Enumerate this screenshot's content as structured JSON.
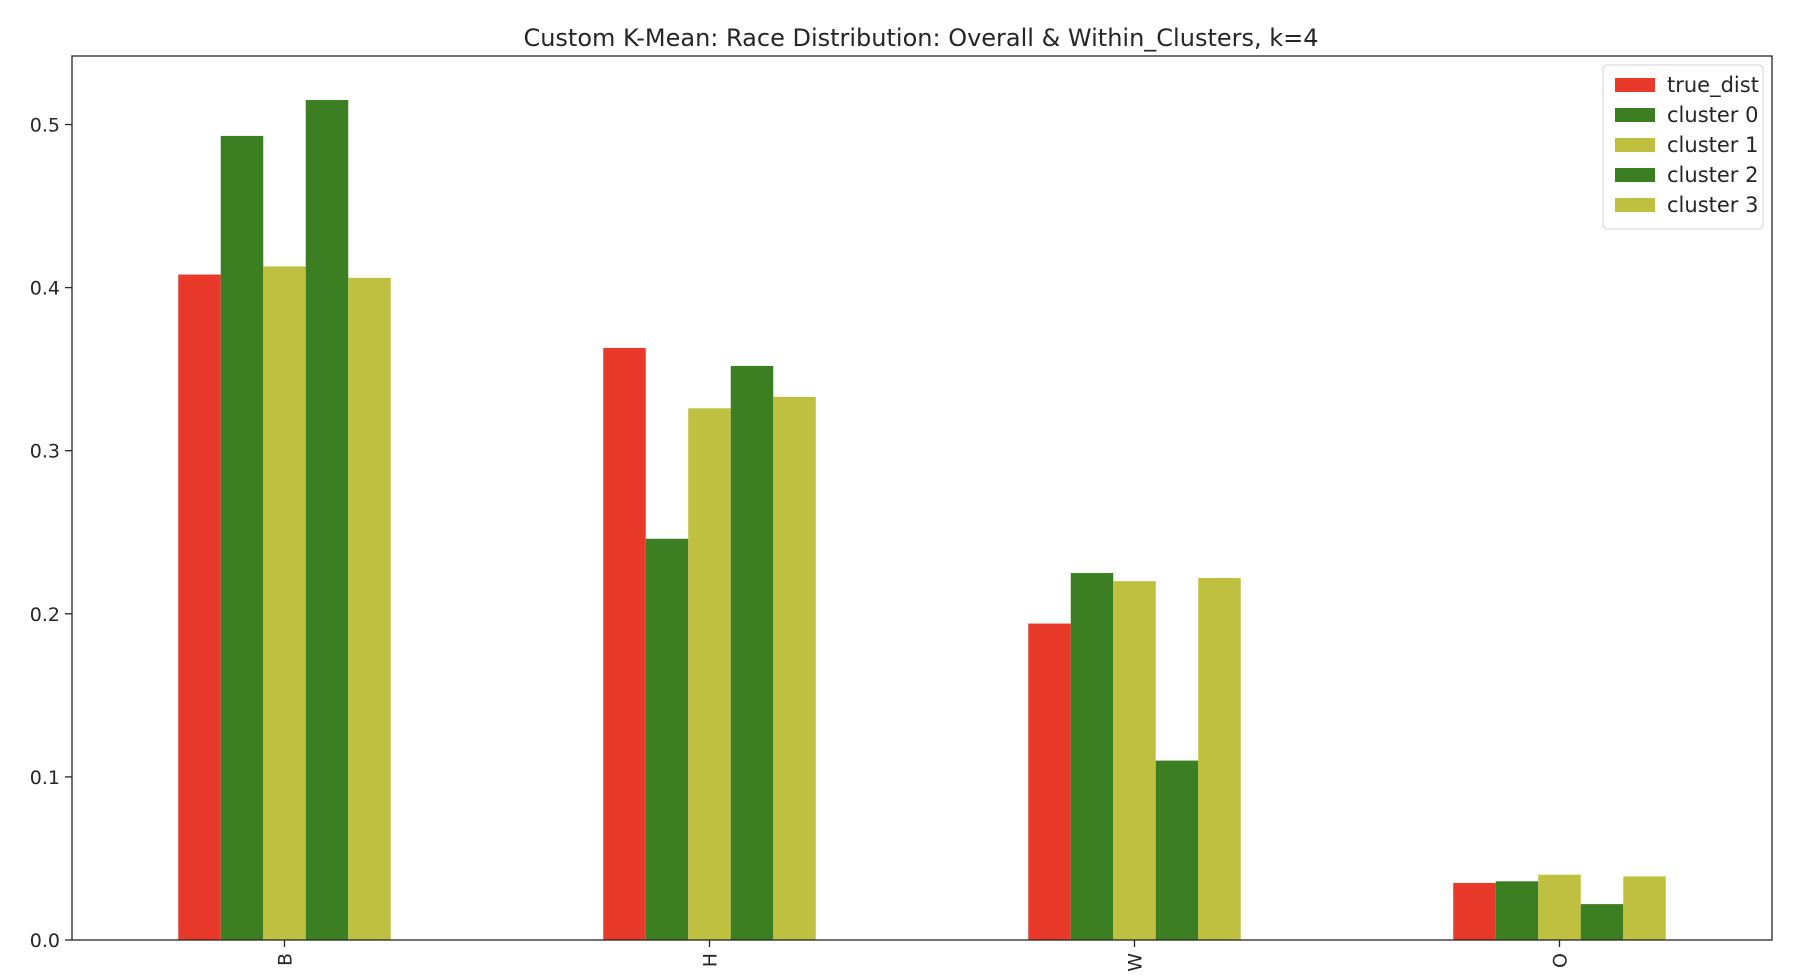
{
  "chart_data": {
    "type": "bar",
    "title": "Custom K-Mean: Race Distribution: Overall & Within_Clusters, k=4",
    "xlabel": "",
    "ylabel": "",
    "categories": [
      "B",
      "H",
      "W",
      "O"
    ],
    "series": [
      {
        "name": "true_dist",
        "color": "#e8392a",
        "values": [
          0.408,
          0.363,
          0.194,
          0.035
        ]
      },
      {
        "name": "cluster 0",
        "color": "#3b7f22",
        "values": [
          0.493,
          0.246,
          0.225,
          0.036
        ]
      },
      {
        "name": "cluster 1",
        "color": "#bfbf40",
        "values": [
          0.413,
          0.326,
          0.22,
          0.04
        ]
      },
      {
        "name": "cluster 2",
        "color": "#3b7f22",
        "values": [
          0.515,
          0.352,
          0.11,
          0.022
        ]
      },
      {
        "name": "cluster 3",
        "color": "#bfbf40",
        "values": [
          0.406,
          0.333,
          0.222,
          0.039
        ]
      }
    ],
    "ylim": [
      0.0,
      0.542
    ],
    "yticks": [
      "0.0",
      "0.1",
      "0.2",
      "0.3",
      "0.4",
      "0.5"
    ],
    "grid": false,
    "legend_position": "top-right"
  }
}
